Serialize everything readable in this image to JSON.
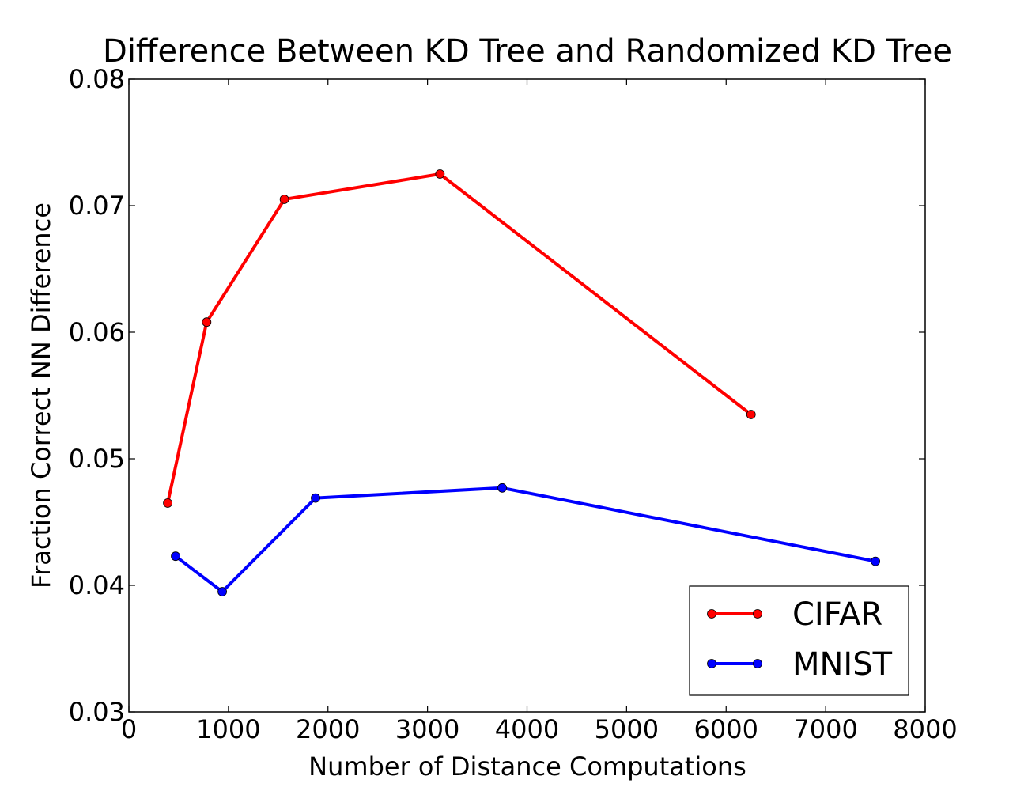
{
  "chart_data": {
    "type": "line",
    "title": "Difference Between KD Tree and Randomized KD Tree",
    "xlabel": "Number of Distance Computations",
    "ylabel": "Fraction Correct NN Difference",
    "xlim": [
      0,
      8000
    ],
    "ylim": [
      0.03,
      0.08
    ],
    "xticks": [
      0,
      1000,
      2000,
      3000,
      4000,
      5000,
      6000,
      7000,
      8000
    ],
    "xtick_labels": [
      "0",
      "1000",
      "2000",
      "3000",
      "4000",
      "5000",
      "6000",
      "7000",
      "8000"
    ],
    "yticks": [
      0.03,
      0.04,
      0.05,
      0.06,
      0.07,
      0.08
    ],
    "ytick_labels": [
      "0.03",
      "0.04",
      "0.05",
      "0.06",
      "0.07",
      "0.08"
    ],
    "grid": false,
    "legend_position": "lower-right",
    "series": [
      {
        "name": "CIFAR",
        "color": "#ff0000",
        "x": [
          390,
          781,
          1562,
          3125,
          6250
        ],
        "y": [
          0.0465,
          0.0608,
          0.0705,
          0.0725,
          0.0535
        ]
      },
      {
        "name": "MNIST",
        "color": "#0000ff",
        "x": [
          469,
          938,
          1875,
          3750,
          7500
        ],
        "y": [
          0.0423,
          0.0395,
          0.0469,
          0.0477,
          0.0419
        ]
      }
    ]
  }
}
